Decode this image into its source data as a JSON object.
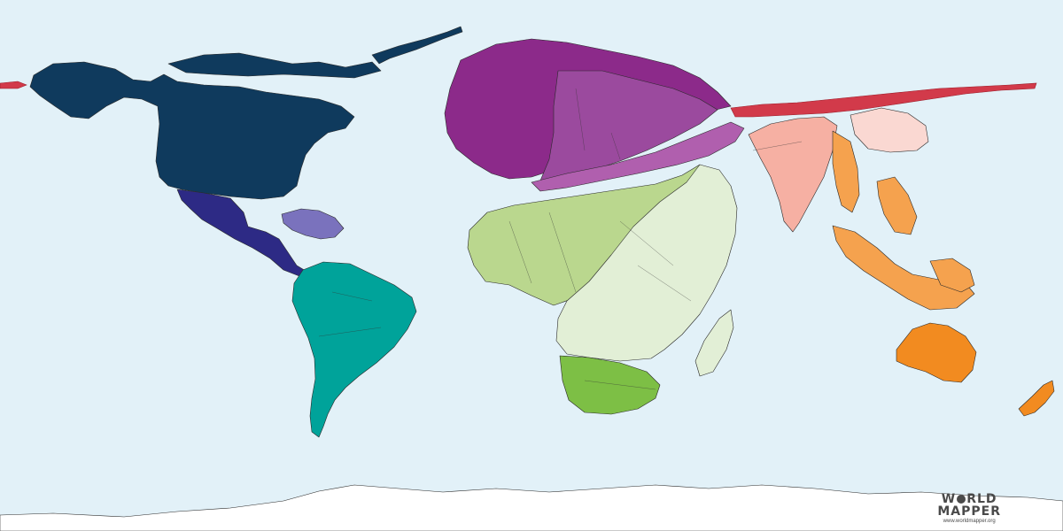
{
  "map": {
    "colors": {
      "ocean": "#e2f1f8",
      "north_america": "#0f3a5d",
      "central_america": "#2d2a85",
      "caribbean": "#7a72bd",
      "south_america": "#00a39a",
      "europe_west": "#8c2a8a",
      "europe_east": "#9b4a9e",
      "middle_east": "#b05fae",
      "north_africa": "#bad78e",
      "subsaharan_africa": "#e2efd6",
      "southern_africa": "#7dbf45",
      "madagascar": "#e2efd6",
      "south_asia": "#f6b0a3",
      "east_asia": "#fad8d2",
      "southeast_asia": "#f5a24e",
      "oceania": "#f28b20",
      "russia": "#d23a4a",
      "antarctica": "#ffffff"
    },
    "regions": [
      "north_america",
      "central_america",
      "caribbean",
      "south_america",
      "europe",
      "middle_east",
      "africa",
      "south_asia",
      "east_asia",
      "southeast_asia",
      "oceania",
      "russia",
      "antarctica"
    ]
  },
  "logo": {
    "line1_pre": "W",
    "line1_post": "RLD",
    "line2": "MAPPER",
    "url": "www.worldmapper.org",
    "icon": "globe-icon"
  }
}
